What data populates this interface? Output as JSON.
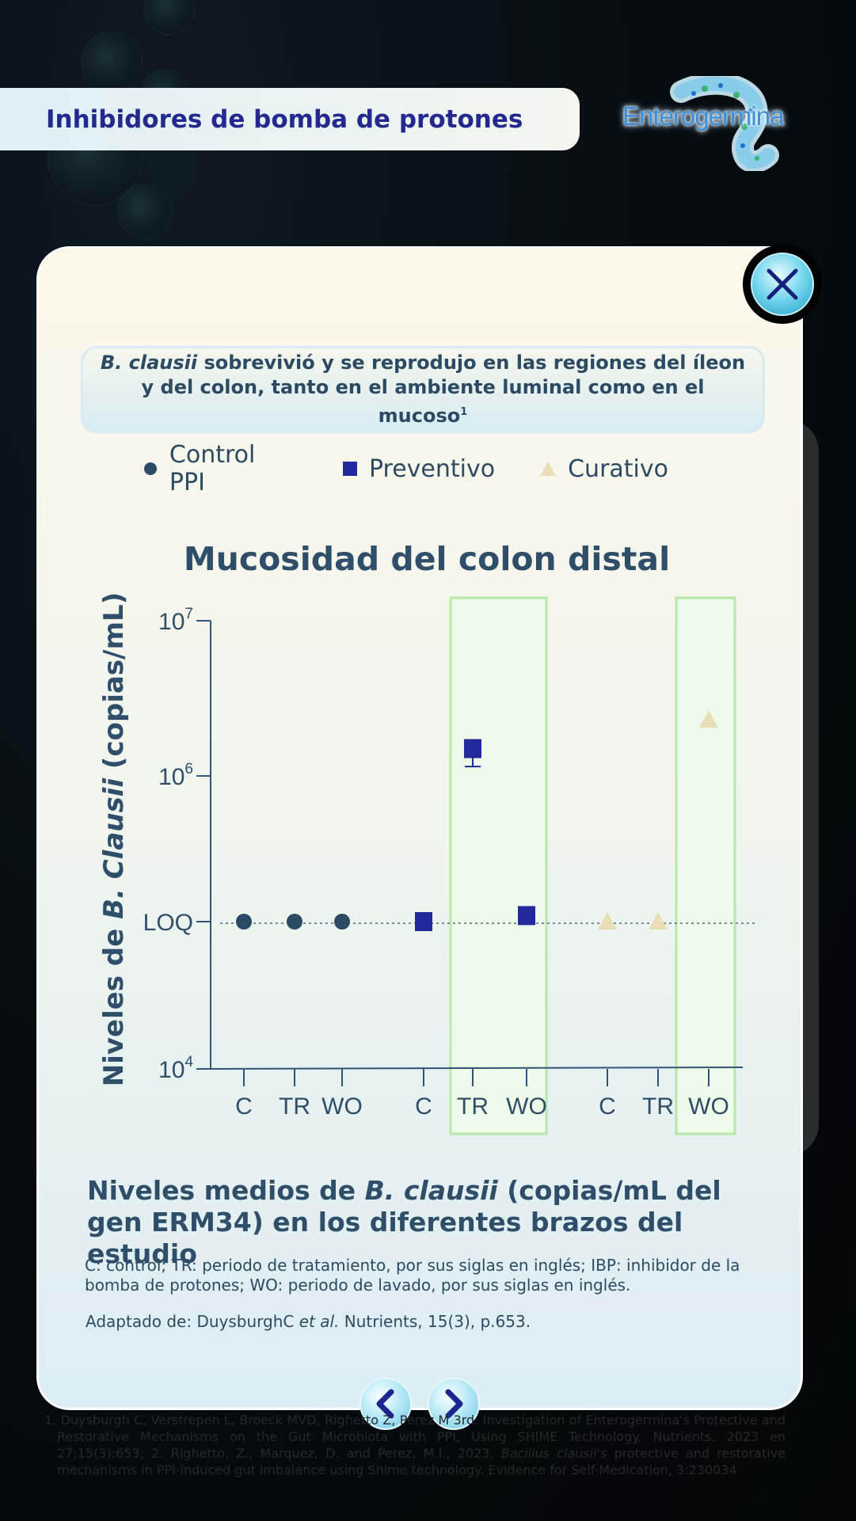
{
  "header": {
    "title": "Inhibidores de bomba de protones"
  },
  "logo": {
    "text": "Enterogermina"
  },
  "card": {
    "subtitle_italic": "B. clausii",
    "subtitle_rest": " sobrevivió y se reprodujo en las regiones del íleon y del colon, tanto en el ambiente luminal como en el mucoso",
    "subtitle_sup": "1",
    "caption_pre": "Niveles medios de ",
    "caption_italic": "B. clausii",
    "caption_post": " (copias/mL del gen ERM34) en los diferentes brazos del estudio",
    "note": "C: control; TR: periodo de tratamiento, por sus siglas en inglés; IBP: inhibidor de la bomba de protones; WO: periodo de lavado, por sus siglas en inglés.",
    "source_pre": "Adaptado de: DuysburghC ",
    "source_italic": "et al.",
    "source_post": " Nutrients, 15(3), p.653."
  },
  "legend": [
    {
      "label": "Control PPI",
      "color": "#2b4a63",
      "shape": "circle"
    },
    {
      "label": "Preventivo",
      "color": "#22299a",
      "shape": "square"
    },
    {
      "label": "Curativo",
      "color": "#e9ddb5",
      "shape": "triangle"
    }
  ],
  "chart_data": {
    "type": "scatter",
    "title": "Mucosidad del colon distal",
    "ylabel_pre": "Niveles de ",
    "ylabel_italic": "B. Clausii",
    "ylabel_post": " (copias/mL)",
    "y_scale": "log",
    "y_ticks": [
      {
        "value": 10000,
        "base": "10",
        "exp": "4"
      },
      {
        "value": "LOQ",
        "label": "LOQ"
      },
      {
        "value": 1000000,
        "base": "10",
        "exp": "6"
      },
      {
        "value": 10000000,
        "base": "10",
        "exp": "7"
      }
    ],
    "loq_value": 100000,
    "categories": [
      "C",
      "TR",
      "WO",
      "C",
      "TR",
      "WO",
      "C",
      "TR",
      "WO"
    ],
    "series": [
      {
        "name": "Control PPI",
        "shape": "circle",
        "color": "#2b4a63",
        "values": [
          100000,
          100000,
          100000
        ]
      },
      {
        "name": "Preventivo",
        "shape": "square",
        "color": "#22299a",
        "values": [
          100000,
          1500000,
          110000
        ],
        "error_low": [
          null,
          1150000,
          null
        ]
      },
      {
        "name": "Curativo",
        "shape": "triangle",
        "color": "#e9ddb5",
        "values": [
          100000,
          100000,
          2300000
        ]
      }
    ],
    "highlighted_categories": [
      "Preventivo TR-WO",
      "Curativo WO"
    ],
    "grid": false,
    "legend_position": "top"
  },
  "navigation": {
    "prev_icon": "chevron-left-icon",
    "next_icon": "chevron-right-icon",
    "close_icon": "close-icon"
  },
  "footer": {
    "refs_pre": "1. Duysburgh C, Verstrepen L, Broeck MVD, Righetto Z, Perez M 3rd. Investigation of Enterogermina's Protective and Restorative Mechanisms on the Gut Microbiota with PPI, Using SHIME Technology. Nutrients. 2023 en 27;15(3):653; 2. Righetto, Z., Marquez, D. and Perez, M.I., 2023. ",
    "refs_italic": "Bacillus clausii's",
    "refs_post": " protective and restorative mechanisms in PPI-induced gut imbalance using Shime technology. Evidence for Self-Medication, 3:230034"
  }
}
